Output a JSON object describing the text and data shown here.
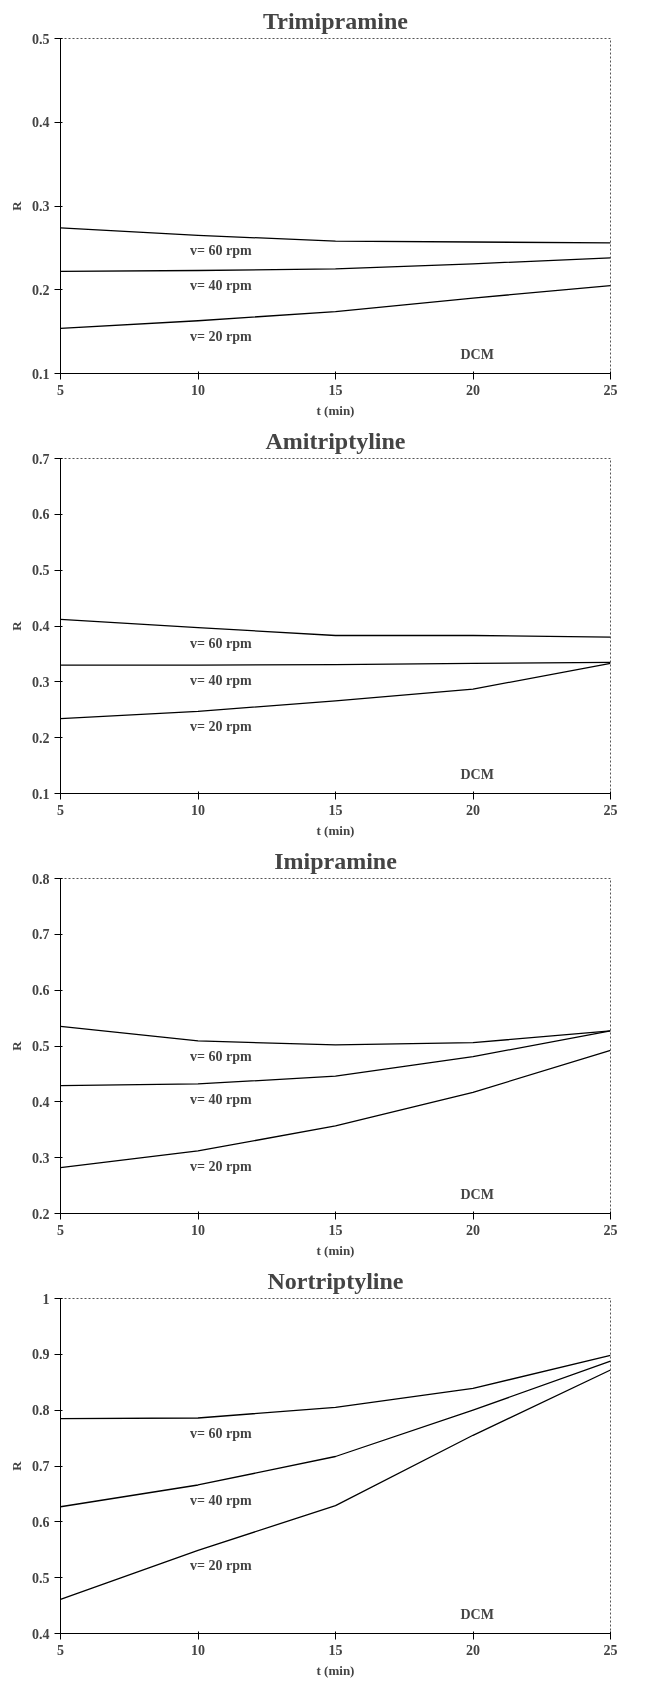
{
  "chart_data": [
    {
      "type": "line",
      "title": "Trimipramine",
      "xlabel": "t (min)",
      "ylabel": "R",
      "x": [
        5,
        10,
        15,
        20,
        25
      ],
      "xlim": [
        5,
        25
      ],
      "xticks": [
        5,
        10,
        15,
        20,
        25
      ],
      "ylim": [
        0.1,
        0.5
      ],
      "yticks": [
        0.1,
        0.2,
        0.3,
        0.4,
        0.5
      ],
      "annotations": [
        "DCM"
      ],
      "series": [
        {
          "name": "v= 60 rpm",
          "color": "#000000",
          "values": [
            0.274,
            0.265,
            0.258,
            0.257,
            0.256
          ]
        },
        {
          "name": "v= 40 rpm",
          "color": "#000000",
          "values": [
            0.222,
            0.223,
            0.225,
            0.231,
            0.238
          ]
        },
        {
          "name": "v= 20 rpm",
          "color": "#000000",
          "values": [
            0.154,
            0.163,
            0.174,
            0.19,
            0.205
          ]
        }
      ]
    },
    {
      "type": "line",
      "title": "Amitriptyline",
      "xlabel": "t (min)",
      "ylabel": "R",
      "x": [
        5,
        10,
        15,
        20,
        25
      ],
      "xlim": [
        5,
        25
      ],
      "xticks": [
        5,
        10,
        15,
        20,
        25
      ],
      "ylim": [
        0.1,
        0.7
      ],
      "yticks": [
        0.1,
        0.2,
        0.3,
        0.4,
        0.5,
        0.6,
        0.7
      ],
      "annotations": [
        "DCM"
      ],
      "series": [
        {
          "name": "v= 60 rpm",
          "color": "#000000",
          "values": [
            0.412,
            0.397,
            0.383,
            0.383,
            0.38
          ]
        },
        {
          "name": "v= 40 rpm",
          "color": "#000000",
          "values": [
            0.33,
            0.33,
            0.331,
            0.333,
            0.335
          ]
        },
        {
          "name": "v= 20 rpm",
          "color": "#000000",
          "values": [
            0.234,
            0.247,
            0.266,
            0.287,
            0.333
          ]
        }
      ]
    },
    {
      "type": "line",
      "title": "Imipramine",
      "xlabel": "t (min)",
      "ylabel": "R",
      "x": [
        5,
        10,
        15,
        20,
        25
      ],
      "xlim": [
        5,
        25
      ],
      "xticks": [
        5,
        10,
        15,
        20,
        25
      ],
      "ylim": [
        0.2,
        0.8
      ],
      "yticks": [
        0.2,
        0.3,
        0.4,
        0.5,
        0.6,
        0.7,
        0.8
      ],
      "annotations": [
        "DCM"
      ],
      "series": [
        {
          "name": "v= 60 rpm",
          "color": "#000000",
          "values": [
            0.535,
            0.509,
            0.502,
            0.506,
            0.527
          ]
        },
        {
          "name": "v= 40 rpm",
          "color": "#000000",
          "values": [
            0.429,
            0.432,
            0.446,
            0.481,
            0.527
          ]
        },
        {
          "name": "v= 20 rpm",
          "color": "#000000",
          "values": [
            0.282,
            0.312,
            0.357,
            0.417,
            0.492
          ]
        }
      ]
    },
    {
      "type": "line",
      "title": "Nortriptyline",
      "xlabel": "t (min)",
      "ylabel": "R",
      "x": [
        5,
        10,
        15,
        20,
        25
      ],
      "xlim": [
        5,
        25
      ],
      "xticks": [
        5,
        10,
        15,
        20,
        25
      ],
      "ylim": [
        0.4,
        1
      ],
      "yticks": [
        0.4,
        0.5,
        0.6,
        0.7,
        0.8,
        0.9,
        1
      ],
      "annotations": [
        "DCM"
      ],
      "series": [
        {
          "name": "v= 60 rpm",
          "color": "#000000",
          "values": [
            0.785,
            0.786,
            0.805,
            0.839,
            0.898
          ]
        },
        {
          "name": "v= 40 rpm",
          "color": "#000000",
          "values": [
            0.627,
            0.666,
            0.717,
            0.8,
            0.888
          ]
        },
        {
          "name": "v= 20 rpm",
          "color": "#000000",
          "values": [
            0.461,
            0.549,
            0.629,
            0.755,
            0.872
          ]
        }
      ]
    }
  ]
}
